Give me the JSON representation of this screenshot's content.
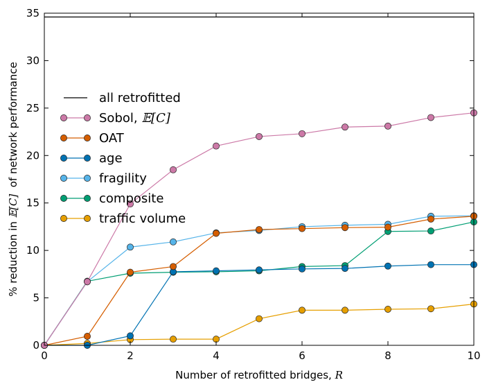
{
  "chart_data": {
    "type": "line",
    "title": "",
    "xlabel": "Number of retrofitted bridges, ",
    "xlabel_math": "R",
    "ylabel_prefix": "% reduction in ",
    "ylabel_math": "𝔼[C]",
    "ylabel_suffix": "  of network performance",
    "xlim": [
      0,
      10
    ],
    "ylim": [
      0,
      35
    ],
    "xticks": [
      0,
      2,
      4,
      6,
      8,
      10
    ],
    "yticks": [
      0,
      5,
      10,
      15,
      20,
      25,
      30,
      35
    ],
    "grid": false,
    "legend_position": "left",
    "x": [
      0,
      1,
      2,
      3,
      4,
      5,
      6,
      7,
      8,
      9,
      10
    ],
    "reference_line": {
      "name": "all retrofitted",
      "y": 34.6,
      "color": "#000000"
    },
    "series": [
      {
        "name": "Sobol, ",
        "name_math": "𝔼[C]",
        "color": "#cc79a7",
        "values": [
          0,
          6.7,
          14.9,
          18.5,
          21.0,
          22.0,
          22.3,
          23.0,
          23.1,
          24.0,
          24.5
        ]
      },
      {
        "name": "OAT",
        "color": "#d55e00",
        "values": [
          0,
          0.95,
          7.7,
          8.3,
          11.8,
          12.2,
          12.3,
          12.4,
          12.45,
          13.3,
          13.6
        ]
      },
      {
        "name": "age",
        "color": "#0072b2",
        "values": [
          0,
          0,
          1.0,
          7.75,
          7.85,
          7.95,
          8.05,
          8.1,
          8.35,
          8.5,
          8.5
        ]
      },
      {
        "name": "fragility",
        "color": "#56b4e9",
        "values": [
          0,
          6.7,
          10.35,
          10.9,
          11.85,
          12.1,
          12.5,
          12.65,
          12.75,
          13.6,
          13.65
        ]
      },
      {
        "name": "composite",
        "color": "#009e73",
        "values": [
          0,
          6.75,
          7.6,
          7.7,
          7.75,
          7.85,
          8.3,
          8.4,
          12.0,
          12.05,
          13.0
        ]
      },
      {
        "name": "traffic volume",
        "color": "#e69f00",
        "values": [
          0,
          0.2,
          0.6,
          0.65,
          0.65,
          2.8,
          3.7,
          3.7,
          3.8,
          3.85,
          4.35
        ]
      }
    ]
  }
}
